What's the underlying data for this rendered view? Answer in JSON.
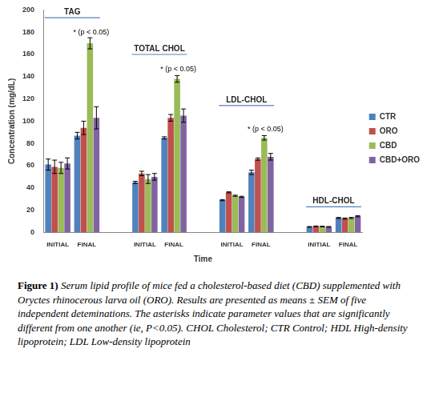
{
  "chart_data": {
    "type": "bar",
    "x_label": "Time",
    "y_label": "Concentration (mg/dL)",
    "categories": [
      "INITIAL",
      "FINAL",
      null,
      "INITIAL",
      "FINAL",
      null,
      "INITIAL",
      "FINAL",
      null,
      "INITIAL",
      "FINAL"
    ],
    "series": [
      {
        "name": "CTR",
        "color": "#4f81bd",
        "values": [
          61,
          87,
          null,
          45,
          85,
          null,
          29,
          54,
          null,
          5,
          13
        ],
        "errors": [
          5,
          3,
          null,
          1,
          1,
          null,
          0.5,
          2,
          null,
          0.3,
          0.5
        ]
      },
      {
        "name": "ORO",
        "color": "#c0504d",
        "values": [
          59,
          94,
          null,
          53,
          103,
          null,
          36,
          66,
          null,
          5.5,
          12.5
        ],
        "errors": [
          6,
          6,
          null,
          2,
          3,
          null,
          0.5,
          1,
          null,
          0.3,
          0.5
        ]
      },
      {
        "name": "CBD",
        "color": "#9bbb59",
        "values": [
          58,
          170,
          null,
          48,
          138,
          null,
          33,
          85,
          null,
          5.3,
          13
        ],
        "errors": [
          5,
          5,
          null,
          4,
          3,
          null,
          0.5,
          2,
          null,
          0.3,
          0.5
        ]
      },
      {
        "name": "CBD+ORO",
        "color": "#8064a2",
        "values": [
          62,
          103,
          null,
          50,
          105,
          null,
          32,
          68,
          null,
          5,
          14.5
        ],
        "errors": [
          5,
          10,
          null,
          3,
          6,
          null,
          0.5,
          3,
          null,
          0.3,
          0.5
        ]
      }
    ],
    "ylim": [
      0,
      200
    ],
    "yticks": [
      0,
      20,
      40,
      60,
      80,
      100,
      120,
      140,
      160,
      180,
      200
    ],
    "grid": false,
    "legend": "right",
    "group_labels": [
      {
        "text": "TAG",
        "categories": [
          0,
          1
        ],
        "y": 193
      },
      {
        "text": "TOTAL CHOL",
        "categories": [
          3,
          4
        ],
        "y": 160
      },
      {
        "text": "LDL-CHOL",
        "categories": [
          6,
          7
        ],
        "y": 114
      },
      {
        "text": "HDL-CHOL",
        "categories": [
          9,
          10
        ],
        "y": 23
      }
    ],
    "annotations": [
      {
        "text": "* (p < 0.05)",
        "category": 1,
        "y": 180
      },
      {
        "text": "* (p < 0.05)",
        "category": 4,
        "y": 147
      },
      {
        "text": "* (p < 0.05)",
        "category": 7,
        "y": 93
      }
    ]
  },
  "caption": {
    "label": "Figure 1)",
    "text": "Serum lipid profile of mice fed a cholesterol-based diet (CBD) supplemented with Oryctes rhinocerous larva oil (ORO). Results are presented as means ± SEM of five independent deteminations. The asterisks indicate parameter values that are significantly different from one another (ie, P<0.05). CHOL Cholesterol; CTR Control; HDL High-density lipoprotein; LDL Low-density lipoprotein"
  }
}
